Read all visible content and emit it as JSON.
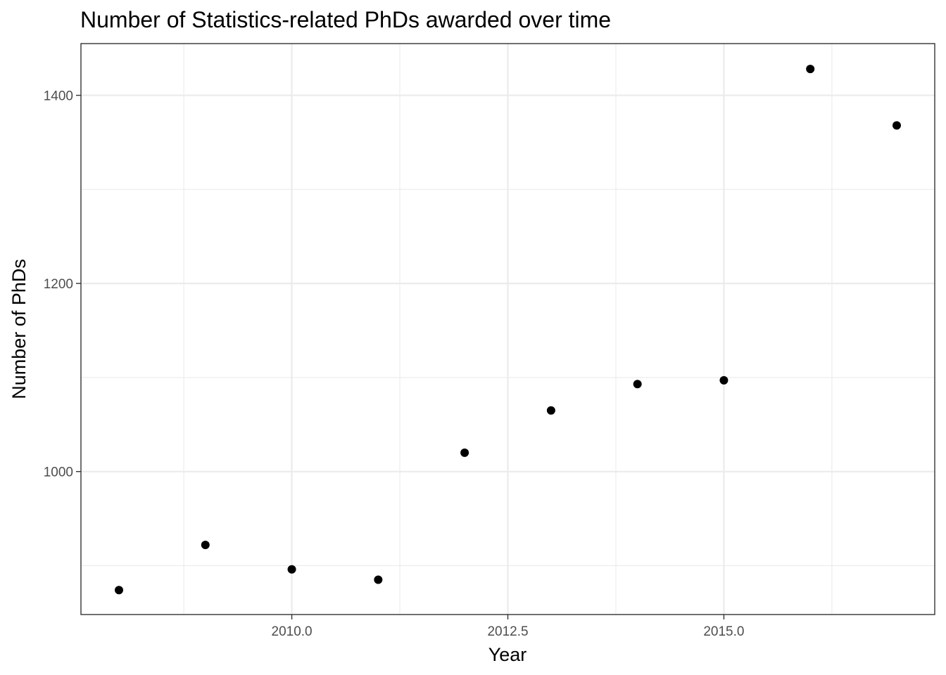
{
  "chart_data": {
    "type": "scatter",
    "title": "Number of Statistics-related PhDs awarded over time",
    "xlabel": "Year",
    "ylabel": "Number of PhDs",
    "xlim": [
      2007.56,
      2017.44
    ],
    "ylim": [
      848,
      1455
    ],
    "x_ticks": [
      "2010.0",
      "2012.5",
      "2015.0"
    ],
    "x_tick_values": [
      2010,
      2012.5,
      2015
    ],
    "x_minor_values": [
      2008.75,
      2011.25,
      2013.75,
      2016.25
    ],
    "y_ticks": [
      "1000",
      "1200",
      "1400"
    ],
    "y_tick_values": [
      1000,
      1200,
      1400
    ],
    "y_minor_values": [
      900,
      1100,
      1300
    ],
    "grid": true,
    "legend": "none",
    "point_color": "#000000",
    "x": [
      2008,
      2009,
      2010,
      2011,
      2012,
      2013,
      2014,
      2015,
      2016,
      2017
    ],
    "y": [
      874,
      922,
      896,
      885,
      1020,
      1065,
      1093,
      1097,
      1428,
      1368
    ]
  }
}
